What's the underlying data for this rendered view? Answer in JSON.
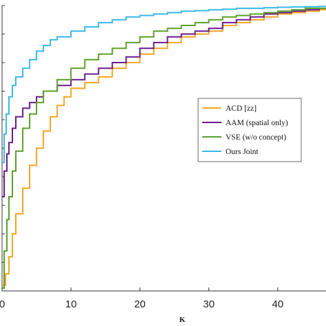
{
  "chart_data": {
    "type": "line",
    "title": "",
    "xlabel": "K",
    "ylabel": "",
    "xlim": [
      0,
      47
    ],
    "ylim": [
      0,
      1
    ],
    "x_ticks": [
      0,
      10,
      20,
      30,
      40
    ],
    "x_tick_labels": [
      "0",
      "10",
      "20",
      "30",
      "40"
    ],
    "grid": false,
    "legend_position": "center-right",
    "series": [
      {
        "name": "ACD [zz]",
        "color": "#f2a520",
        "x": [
          0,
          0.5,
          1,
          1.5,
          2,
          3,
          4,
          5,
          6,
          7,
          8,
          9,
          10,
          12,
          14,
          16,
          18,
          20,
          22,
          24,
          26,
          28,
          30,
          32,
          34,
          36,
          38,
          40,
          42,
          44,
          46,
          47
        ],
        "y": [
          0.02,
          0.06,
          0.12,
          0.2,
          0.27,
          0.36,
          0.44,
          0.5,
          0.56,
          0.61,
          0.65,
          0.68,
          0.71,
          0.73,
          0.75,
          0.78,
          0.8,
          0.83,
          0.85,
          0.87,
          0.89,
          0.9,
          0.91,
          0.93,
          0.94,
          0.95,
          0.96,
          0.97,
          0.975,
          0.98,
          0.985,
          0.985
        ]
      },
      {
        "name": "AAM (spatial only)",
        "color": "#6a1a8a",
        "x": [
          0,
          0.3,
          0.7,
          1,
          1.5,
          2,
          3,
          4,
          5,
          6,
          8,
          10,
          12,
          14,
          16,
          18,
          20,
          22,
          24,
          26,
          28,
          30,
          32,
          34,
          36,
          38,
          40,
          42,
          44,
          46,
          47
        ],
        "y": [
          0.33,
          0.42,
          0.48,
          0.52,
          0.57,
          0.61,
          0.64,
          0.66,
          0.68,
          0.7,
          0.72,
          0.74,
          0.76,
          0.78,
          0.8,
          0.82,
          0.85,
          0.87,
          0.89,
          0.9,
          0.91,
          0.92,
          0.94,
          0.95,
          0.96,
          0.97,
          0.975,
          0.98,
          0.985,
          0.99,
          0.99
        ]
      },
      {
        "name": "VSE (w/o concept)",
        "color": "#5aa028",
        "x": [
          0,
          0.3,
          0.7,
          1,
          1.5,
          2,
          3,
          4,
          5,
          6,
          8,
          10,
          12,
          14,
          16,
          18,
          20,
          22,
          24,
          26,
          28,
          30,
          32,
          34,
          36,
          38,
          40,
          42,
          44,
          46,
          47
        ],
        "y": [
          0.01,
          0.14,
          0.25,
          0.33,
          0.42,
          0.49,
          0.57,
          0.62,
          0.66,
          0.7,
          0.74,
          0.78,
          0.81,
          0.83,
          0.85,
          0.87,
          0.89,
          0.91,
          0.92,
          0.93,
          0.94,
          0.95,
          0.96,
          0.965,
          0.97,
          0.975,
          0.98,
          0.985,
          0.99,
          0.99,
          0.99
        ]
      },
      {
        "name": "Ours Joint",
        "color": "#38b8e6",
        "x": [
          0,
          0.3,
          0.6,
          1,
          1.5,
          2,
          3,
          4,
          5,
          6,
          7,
          8,
          10,
          12,
          14,
          16,
          18,
          20,
          22,
          24,
          26,
          28,
          30,
          32,
          34,
          36,
          38,
          40,
          42,
          44,
          46,
          47
        ],
        "y": [
          0.45,
          0.55,
          0.62,
          0.68,
          0.72,
          0.75,
          0.78,
          0.81,
          0.84,
          0.86,
          0.88,
          0.89,
          0.91,
          0.925,
          0.94,
          0.95,
          0.96,
          0.965,
          0.97,
          0.975,
          0.98,
          0.982,
          0.985,
          0.987,
          0.99,
          0.99,
          0.992,
          0.994,
          0.995,
          0.996,
          0.997,
          0.997
        ]
      }
    ]
  }
}
